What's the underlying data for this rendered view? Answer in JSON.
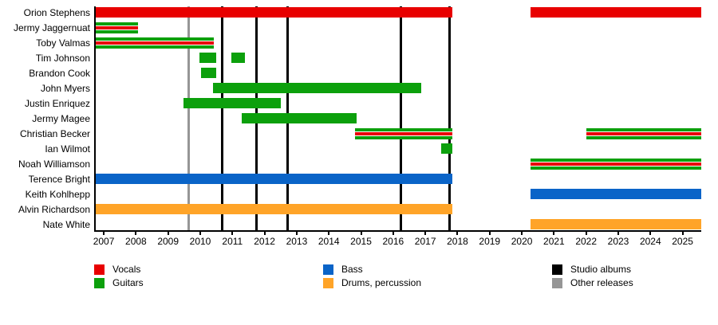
{
  "chart_data": {
    "type": "timeline",
    "title": "",
    "x_range": [
      2006.75,
      2025.58
    ],
    "axis_years": [
      2007,
      2008,
      2009,
      2010,
      2011,
      2012,
      2013,
      2014,
      2015,
      2016,
      2017,
      2018,
      2019,
      2020,
      2021,
      2022,
      2023,
      2024,
      2025
    ],
    "rows": [
      {
        "member": "Orion Stephens",
        "roles": [
          "vocals"
        ],
        "segments": [
          [
            2006.75,
            2017.83
          ],
          [
            2020.27,
            2025.58
          ]
        ]
      },
      {
        "member": "Jermy Jaggernuat",
        "roles": [
          "guitars",
          "vocals"
        ],
        "segments": [
          [
            2006.75,
            2008.07
          ]
        ]
      },
      {
        "member": "Toby Valmas",
        "roles": [
          "guitars",
          "vocals"
        ],
        "segments": [
          [
            2006.75,
            2010.41
          ]
        ]
      },
      {
        "member": "Tim Johnson",
        "roles": [
          "guitars"
        ],
        "segments": [
          [
            2009.98,
            2010.5
          ],
          [
            2010.97,
            2011.38
          ]
        ]
      },
      {
        "member": "Brandon Cook",
        "roles": [
          "guitars"
        ],
        "segments": [
          [
            2010.03,
            2010.49
          ]
        ]
      },
      {
        "member": "John Myers",
        "roles": [
          "guitars"
        ],
        "segments": [
          [
            2010.39,
            2016.87
          ]
        ]
      },
      {
        "member": "Justin Enriquez",
        "roles": [
          "guitars"
        ],
        "segments": [
          [
            2009.48,
            2012.5
          ]
        ]
      },
      {
        "member": "Jermy Magee",
        "roles": [
          "guitars"
        ],
        "segments": [
          [
            2011.3,
            2014.86
          ]
        ]
      },
      {
        "member": "Christian Becker",
        "roles": [
          "guitars",
          "vocals"
        ],
        "segments": [
          [
            2014.81,
            2017.84
          ],
          [
            2022.01,
            2025.58
          ]
        ]
      },
      {
        "member": "Ian Wilmot",
        "roles": [
          "guitars"
        ],
        "segments": [
          [
            2017.5,
            2017.84
          ]
        ]
      },
      {
        "member": "Noah Williamson",
        "roles": [
          "guitars",
          "vocals"
        ],
        "segments": [
          [
            2020.27,
            2025.58
          ]
        ]
      },
      {
        "member": "Terence Bright",
        "roles": [
          "bass"
        ],
        "segments": [
          [
            2006.75,
            2017.83
          ]
        ]
      },
      {
        "member": "Keith Kohlhepp",
        "roles": [
          "bass"
        ],
        "segments": [
          [
            2020.27,
            2025.58
          ]
        ]
      },
      {
        "member": "Alvin Richardson",
        "roles": [
          "drums_percussion"
        ],
        "segments": [
          [
            2006.75,
            2017.83
          ]
        ]
      },
      {
        "member": "Nate White",
        "roles": [
          "drums_percussion"
        ],
        "segments": [
          [
            2020.27,
            2025.58
          ]
        ]
      }
    ],
    "markers": {
      "studio_albums": [
        2010.67,
        2011.76,
        2012.72,
        2016.24,
        2017.76
      ],
      "other_releases": [
        2009.65
      ]
    }
  },
  "colors": {
    "vocals": "#e80000",
    "guitars": "#0ca00c",
    "bass": "#0a64c8",
    "drums_percussion": "#ffa428",
    "studio_albums": "#000000",
    "other_releases": "#969696",
    "axis": "#000000",
    "background": "#ffffff"
  },
  "legend": {
    "columns": [
      [
        {
          "label": "Vocals",
          "color": "vocals"
        },
        {
          "label": "Guitars",
          "color": "guitars"
        }
      ],
      [
        {
          "label": "Bass",
          "color": "bass"
        },
        {
          "label": "Drums, percussion",
          "color": "drums_percussion"
        }
      ],
      [
        {
          "label": "Studio albums",
          "color": "studio_albums"
        },
        {
          "label": "Other releases",
          "color": "other_releases"
        }
      ]
    ]
  }
}
